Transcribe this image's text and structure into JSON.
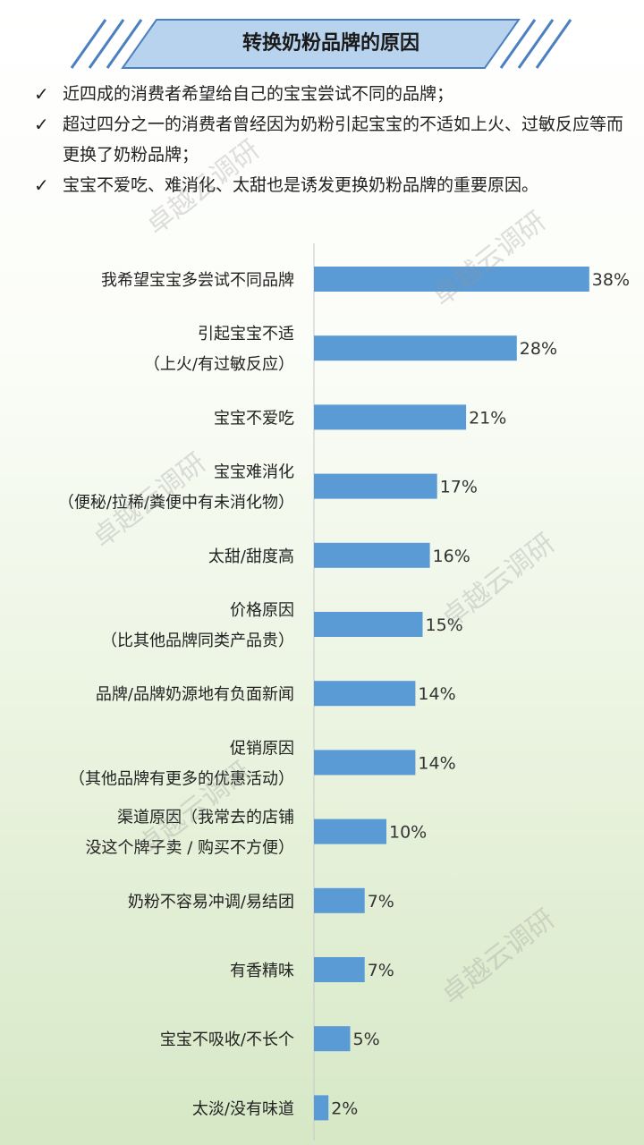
{
  "title": "转换奶粉品牌的原因",
  "bullets": [
    "近四成的消费者希望给自己的宝宝尝试不同的品牌；",
    "超过四分之一的消费者曾经因为奶粉引起宝宝的不适如上火、过敏反应等而更换了奶粉品牌；",
    "宝宝不爱吃、难消化、太甜也是诱发更换奶粉品牌的重要原因。"
  ],
  "watermark": "卓越云调研",
  "colors": {
    "bar": "#5b9bd5",
    "banner_fill": "#b8d3ee",
    "banner_stroke": "#4a7fc0"
  },
  "chart_data": {
    "type": "bar",
    "orientation": "horizontal",
    "categories": [
      [
        "我希望宝宝多尝试不同品牌"
      ],
      [
        "引起宝宝不适",
        "（上火/有过敏反应）"
      ],
      [
        "宝宝不爱吃"
      ],
      [
        "宝宝难消化",
        "（便秘/拉稀/粪便中有未消化物）"
      ],
      [
        "太甜/甜度高"
      ],
      [
        "价格原因",
        "（比其他品牌同类产品贵）"
      ],
      [
        "品牌/品牌奶源地有负面新闻"
      ],
      [
        "促销原因",
        "（其他品牌有更多的优惠活动）"
      ],
      [
        "渠道原因（我常去的店铺",
        "没这个牌子卖 / 购买不方便）"
      ],
      [
        "奶粉不容易冲调/易结团"
      ],
      [
        "有香精味"
      ],
      [
        "宝宝不吸收/不长个"
      ],
      [
        "太淡/没有味道"
      ]
    ],
    "values": [
      38,
      28,
      21,
      17,
      16,
      15,
      14,
      14,
      10,
      7,
      7,
      5,
      2
    ],
    "value_labels": [
      "38%",
      "28%",
      "21%",
      "17%",
      "16%",
      "15%",
      "14%",
      "14%",
      "10%",
      "7%",
      "7%",
      "5%",
      "2%"
    ],
    "xlim": [
      0,
      40
    ],
    "grid": false
  }
}
